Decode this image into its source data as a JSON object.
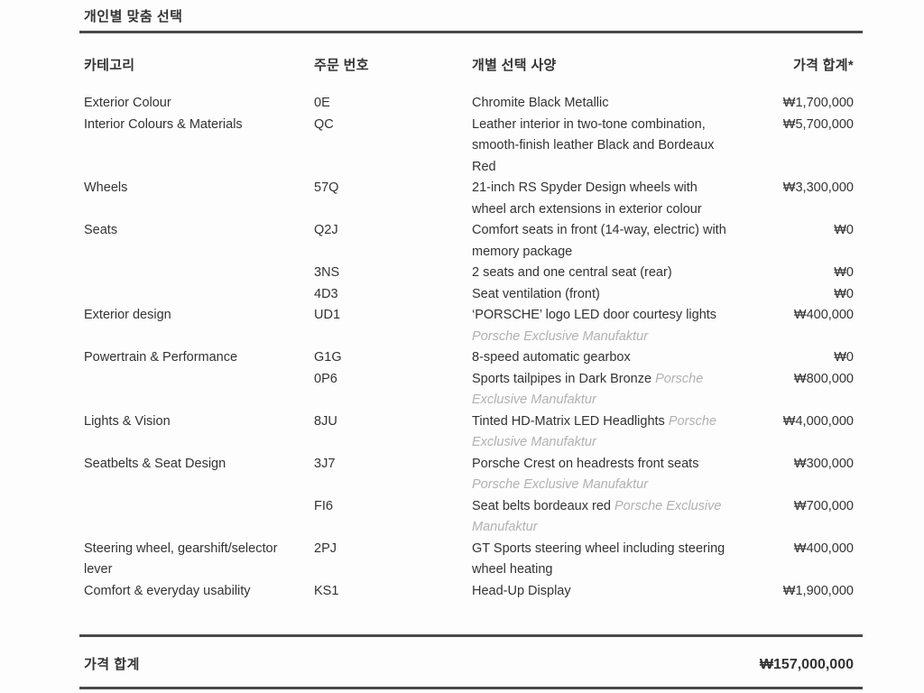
{
  "title": "개인별 맞춤 선택",
  "table": {
    "headers": {
      "category": "카테고리",
      "order_number": "주문 번호",
      "option": "개별 선택 사양",
      "price": "가격 합계*"
    },
    "rows": [
      {
        "category": "Exterior Colour",
        "code": "0E",
        "desc": [
          {
            "t": "Chromite Black Metallic",
            "em": false
          }
        ],
        "price": "₩1,700,000"
      },
      {
        "category": "Interior Colours & Materials",
        "code": "QC",
        "desc": [
          {
            "t": "Leather interior in two-tone combination, smooth-finish leather Black and Bordeaux Red",
            "em": false
          }
        ],
        "price": "₩5,700,000"
      },
      {
        "category": "Wheels",
        "code": "57Q",
        "desc": [
          {
            "t": "21-inch RS Spyder Design wheels with wheel arch extensions in exterior colour",
            "em": false
          }
        ],
        "price": "₩3,300,000"
      },
      {
        "category": "Seats",
        "code": "Q2J",
        "desc": [
          {
            "t": "Comfort seats in front (14-way, electric) with memory package",
            "em": false
          }
        ],
        "price": "₩0"
      },
      {
        "category": "",
        "code": "3NS",
        "desc": [
          {
            "t": "2 seats and one central seat (rear)",
            "em": false
          }
        ],
        "price": "₩0"
      },
      {
        "category": "",
        "code": "4D3",
        "desc": [
          {
            "t": "Seat ventilation (front)",
            "em": false
          }
        ],
        "price": "₩0"
      },
      {
        "category": "Exterior design",
        "code": "UD1",
        "desc": [
          {
            "t": "‘PORSCHE’ logo LED door courtesy lights ",
            "em": false
          },
          {
            "t": "Porsche Exclusive Manufaktur",
            "em": true
          }
        ],
        "price": "₩400,000"
      },
      {
        "category": "Powertrain & Performance",
        "code": "G1G",
        "desc": [
          {
            "t": "8-speed automatic gearbox",
            "em": false
          }
        ],
        "price": "₩0"
      },
      {
        "category": "",
        "code": "0P6",
        "desc": [
          {
            "t": "Sports tailpipes in Dark Bronze ",
            "em": false
          },
          {
            "t": "Porsche Exclusive Manufaktur",
            "em": true
          }
        ],
        "price": "₩800,000"
      },
      {
        "category": "Lights & Vision",
        "code": "8JU",
        "desc": [
          {
            "t": "Tinted HD-Matrix LED Headlights ",
            "em": false
          },
          {
            "t": "Porsche Exclusive Manufaktur",
            "em": true
          }
        ],
        "price": "₩4,000,000"
      },
      {
        "category": "Seatbelts & Seat Design",
        "code": "3J7",
        "desc": [
          {
            "t": "Porsche Crest on headrests front seats ",
            "em": false
          },
          {
            "t": "Porsche Exclusive Manufaktur",
            "em": true
          }
        ],
        "price": "₩300,000"
      },
      {
        "category": "",
        "code": "FI6",
        "desc": [
          {
            "t": "Seat belts bordeaux red ",
            "em": false
          },
          {
            "t": "Porsche Exclusive Manufaktur",
            "em": true
          }
        ],
        "price": "₩700,000"
      },
      {
        "category": "Steering wheel, gearshift/selector lever",
        "code": "2PJ",
        "desc": [
          {
            "t": "GT Sports steering wheel including steering wheel heating",
            "em": false
          }
        ],
        "price": "₩400,000"
      },
      {
        "category": "Comfort & everyday usability",
        "code": "KS1",
        "desc": [
          {
            "t": "Head-Up Display",
            "em": false
          }
        ],
        "price": "₩1,900,000"
      }
    ]
  },
  "footer": {
    "label": "가격 합계",
    "total": "₩157,000,000"
  },
  "colors": {
    "text": "#333333",
    "muted": "#b3b0b0",
    "rule": "#4a4a4a",
    "background": "#fdfdfd"
  }
}
